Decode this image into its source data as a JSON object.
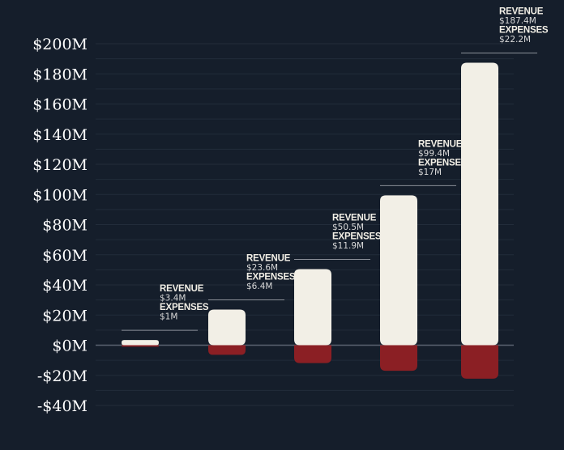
{
  "chart_data": {
    "type": "bar",
    "title": "",
    "xlabel": "",
    "ylabel": "",
    "ylim": [
      -40,
      200
    ],
    "y_ticks": [
      200,
      180,
      160,
      140,
      120,
      100,
      80,
      60,
      40,
      20,
      0,
      -20,
      -40
    ],
    "y_tick_labels": [
      "$200M",
      "$180M",
      "$160M",
      "$140M",
      "$120M",
      "$100M",
      "$80M",
      "$60M",
      "$40M",
      "$20M",
      "$0M",
      "-$20M",
      "-$40M"
    ],
    "grid": true,
    "series": [
      {
        "name": "REVENUE",
        "values": [
          3.4,
          23.6,
          50.5,
          99.4,
          187.4
        ]
      },
      {
        "name": "EXPENSES",
        "values": [
          1,
          6.4,
          11.9,
          17,
          22.2
        ]
      }
    ],
    "annotations": [
      {
        "revenue_label": "REVENUE",
        "revenue_value": "$3.4M",
        "expenses_label": "EXPENSES",
        "expenses_value": "$1M"
      },
      {
        "revenue_label": "REVENUE",
        "revenue_value": "$23.6M",
        "expenses_label": "EXPENSES",
        "expenses_value": "$6.4M"
      },
      {
        "revenue_label": "REVENUE",
        "revenue_value": "$50.5M",
        "expenses_label": "EXPENSES",
        "expenses_value": "$11.9M"
      },
      {
        "revenue_label": "REVENUE",
        "revenue_value": "$99.4M",
        "expenses_label": "EXPENSES",
        "expenses_value": "$17M"
      },
      {
        "revenue_label": "REVENUE",
        "revenue_value": "$187.4M",
        "expenses_label": "EXPENSES",
        "expenses_value": "$22.2M"
      }
    ],
    "colors": {
      "background": "#151e2b",
      "revenue": "#f2efe6",
      "expenses": "#8b1f24",
      "grid": "#222c3a",
      "zero_line": "#5a6270",
      "leader_line": "#8a8f98"
    }
  }
}
